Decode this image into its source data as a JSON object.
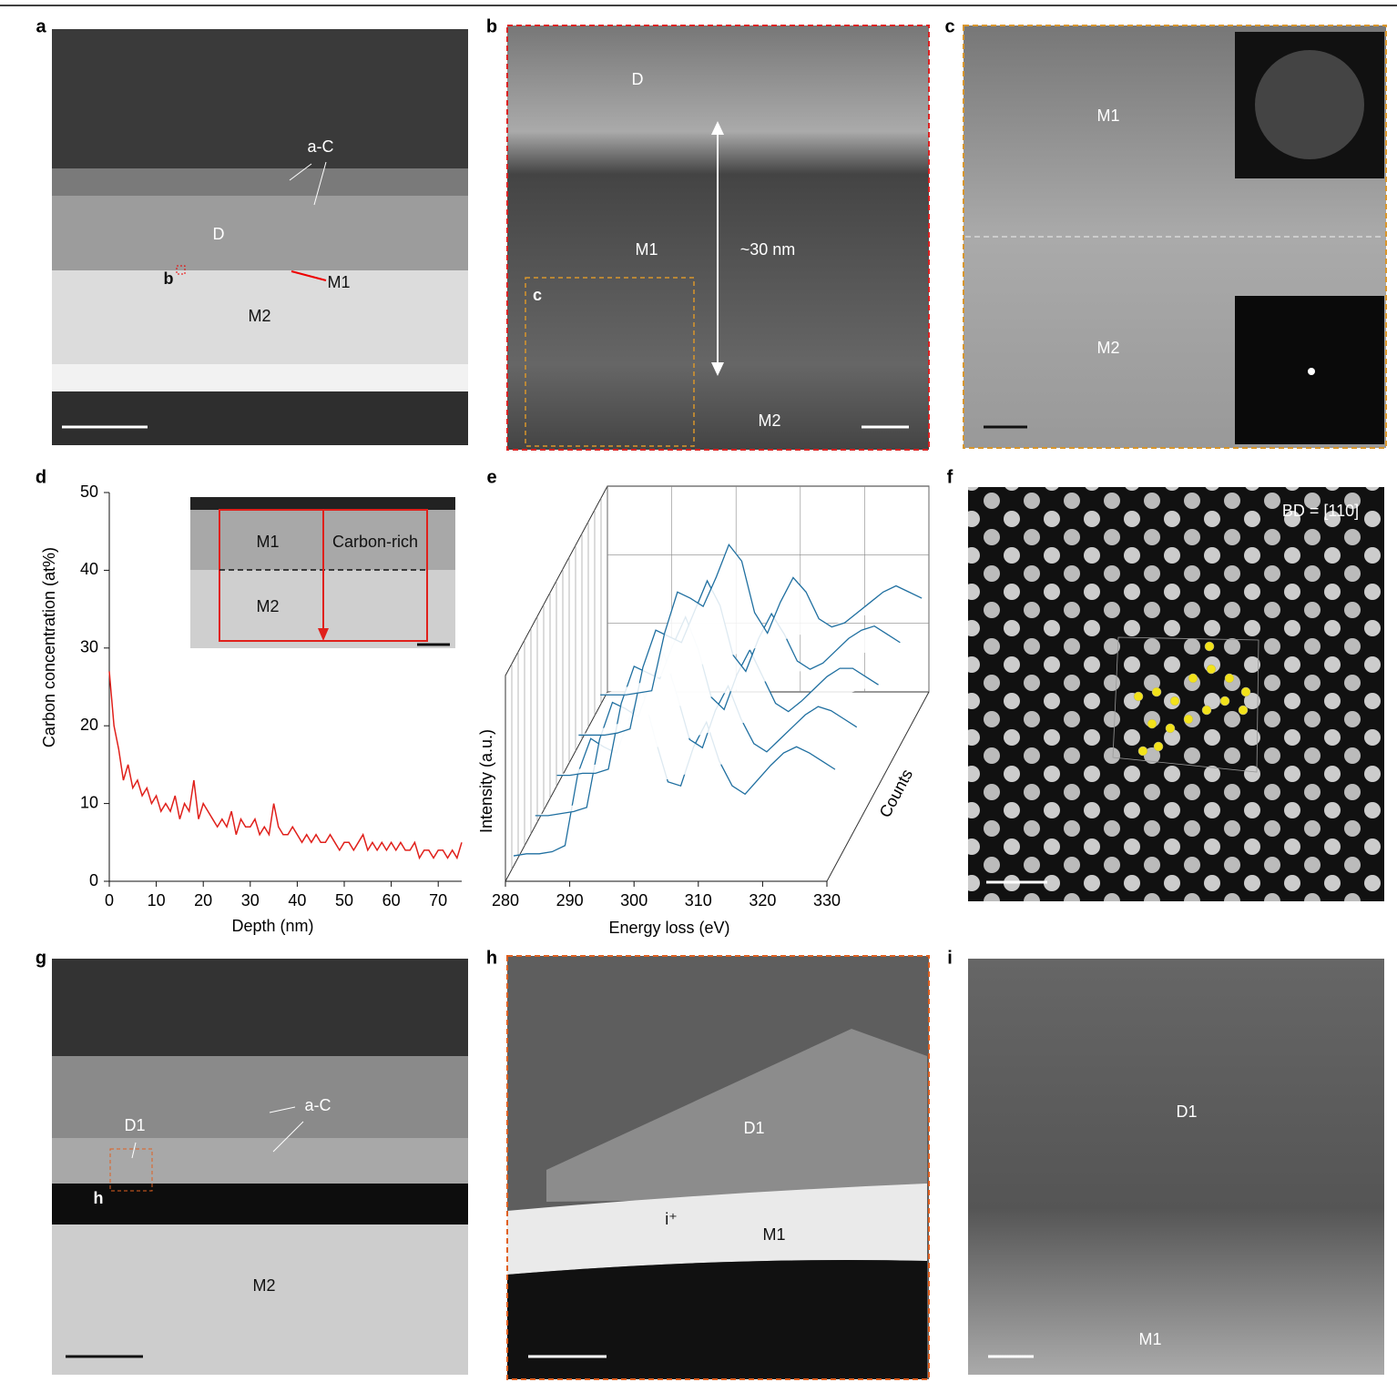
{
  "figure": {
    "panel_labels": [
      "a",
      "b",
      "c",
      "d",
      "e",
      "f",
      "g",
      "h",
      "i"
    ],
    "a": {
      "annotations": [
        "a-C",
        "D",
        "b",
        "M1",
        "M2"
      ]
    },
    "b": {
      "annotations": [
        "D",
        "M1",
        "~30 nm",
        "c",
        "M2"
      ]
    },
    "c": {
      "annotations": [
        "M1",
        "M2"
      ]
    },
    "d_inset": {
      "annotations": [
        "M1",
        "Carbon-rich",
        "M2"
      ]
    },
    "f": {
      "annotations": [
        "BD = [110]"
      ]
    },
    "g": {
      "annotations": [
        "a-C",
        "D1",
        "h",
        "M2"
      ]
    },
    "h": {
      "annotations": [
        "D1",
        "i⁺",
        "M1"
      ]
    },
    "i": {
      "annotations": [
        "D1",
        "M1"
      ]
    }
  },
  "chart_data": [
    {
      "type": "line",
      "x_label": "Depth (nm)",
      "y_label": "Carbon concentration (at%)",
      "color": "#e0201b",
      "x": [
        0,
        1,
        2,
        3,
        4,
        5,
        6,
        7,
        8,
        9,
        10,
        11,
        12,
        13,
        14,
        15,
        16,
        17,
        18,
        19,
        20,
        21,
        22,
        23,
        24,
        25,
        26,
        27,
        28,
        29,
        30,
        31,
        32,
        33,
        34,
        35,
        36,
        37,
        38,
        39,
        40,
        41,
        42,
        43,
        44,
        45,
        46,
        47,
        48,
        49,
        50,
        51,
        52,
        53,
        54,
        55,
        56,
        57,
        58,
        59,
        60,
        61,
        62,
        63,
        64,
        65,
        66,
        67,
        68,
        69,
        70,
        71,
        72,
        73,
        74,
        75
      ],
      "values": [
        27,
        20,
        17,
        13,
        15,
        12,
        13,
        11,
        12,
        10,
        11,
        9,
        10,
        9,
        11,
        8,
        10,
        9,
        13,
        8,
        10,
        9,
        8,
        7,
        8,
        7,
        9,
        6,
        8,
        7,
        7,
        8,
        6,
        7,
        6,
        10,
        7,
        6,
        6,
        7,
        6,
        5,
        6,
        5,
        6,
        5,
        5,
        6,
        5,
        4,
        5,
        5,
        4,
        5,
        6,
        4,
        5,
        4,
        5,
        4,
        5,
        4,
        5,
        4,
        4,
        5,
        3,
        4,
        4,
        3,
        4,
        4,
        3,
        4,
        3,
        5
      ],
      "xlim": [
        0,
        75
      ],
      "ylim": [
        0,
        50
      ],
      "xticks": [
        0,
        10,
        20,
        30,
        40,
        50,
        60,
        70
      ],
      "yticks": [
        0,
        10,
        20,
        30,
        40,
        50
      ]
    },
    {
      "type": "waterfall",
      "x_label": "Energy loss (eV)",
      "y_label": "Intensity (a.u.)",
      "z_label": "Counts",
      "color": "#1f6fa0",
      "x": [
        280,
        282,
        284,
        286,
        288,
        290,
        292,
        294,
        296,
        298,
        300,
        302,
        304,
        306,
        308,
        310,
        312,
        314,
        316,
        318,
        320,
        322,
        324,
        326,
        328,
        330
      ],
      "series": [
        {
          "values": [
            0.05,
            0.05,
            0.05,
            0.06,
            0.07,
            0.35,
            0.55,
            0.52,
            0.48,
            0.62,
            0.78,
            0.7,
            0.45,
            0.35,
            0.5,
            0.62,
            0.55,
            0.42,
            0.38,
            0.4,
            0.45,
            0.5,
            0.55,
            0.58,
            0.55,
            0.52
          ]
        },
        {
          "values": [
            0.05,
            0.05,
            0.05,
            0.06,
            0.08,
            0.38,
            0.56,
            0.53,
            0.5,
            0.65,
            0.8,
            0.68,
            0.44,
            0.36,
            0.52,
            0.64,
            0.54,
            0.41,
            0.37,
            0.4,
            0.46,
            0.52,
            0.56,
            0.58,
            0.54,
            0.5
          ]
        },
        {
          "values": [
            0.05,
            0.05,
            0.06,
            0.06,
            0.08,
            0.4,
            0.58,
            0.55,
            0.52,
            0.68,
            0.82,
            0.66,
            0.43,
            0.37,
            0.54,
            0.66,
            0.53,
            0.4,
            0.36,
            0.41,
            0.47,
            0.53,
            0.57,
            0.57,
            0.53,
            0.49
          ]
        },
        {
          "values": [
            0.05,
            0.05,
            0.06,
            0.07,
            0.09,
            0.42,
            0.6,
            0.57,
            0.53,
            0.7,
            0.84,
            0.64,
            0.42,
            0.38,
            0.56,
            0.68,
            0.52,
            0.4,
            0.36,
            0.42,
            0.48,
            0.54,
            0.58,
            0.56,
            0.52,
            0.48
          ]
        },
        {
          "values": [
            0.05,
            0.06,
            0.06,
            0.07,
            0.1,
            0.45,
            0.62,
            0.58,
            0.55,
            0.72,
            0.86,
            0.62,
            0.41,
            0.39,
            0.58,
            0.7,
            0.51,
            0.39,
            0.35,
            0.42,
            0.49,
            0.55,
            0.58,
            0.55,
            0.51,
            0.47
          ]
        }
      ],
      "xlim": [
        280,
        330
      ],
      "ylim": [
        0,
        1
      ],
      "xticks": [
        280,
        290,
        300,
        310,
        320,
        330
      ]
    }
  ]
}
